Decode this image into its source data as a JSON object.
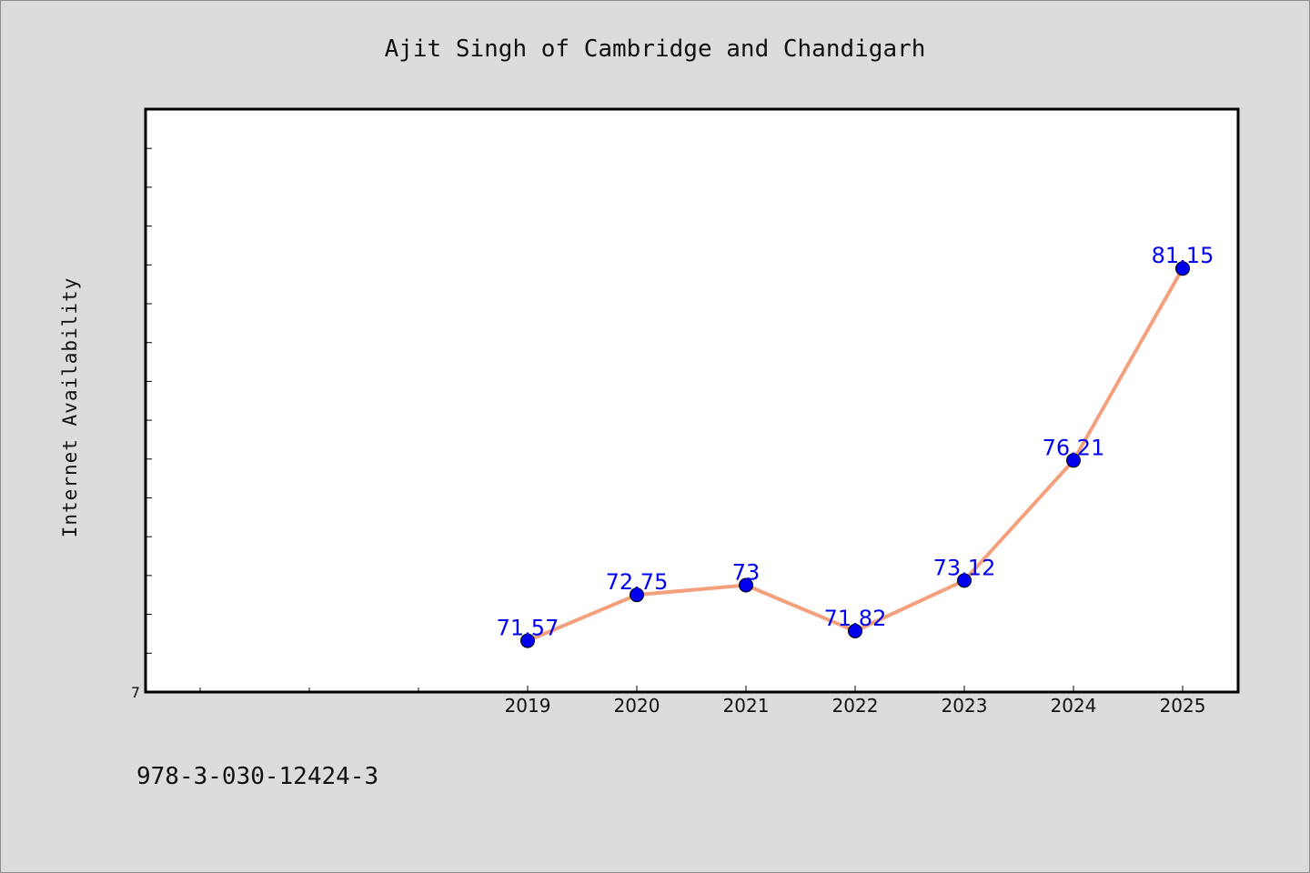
{
  "chart_data": {
    "type": "line",
    "title": "Ajit Singh of Cambridge and Chandigarh",
    "xlabel": "",
    "ylabel": "Internet Availability",
    "categories": [
      "2019",
      "2020",
      "2021",
      "2022",
      "2023",
      "2024",
      "2025"
    ],
    "series": [
      {
        "values": [
          71.57,
          72.75,
          73,
          71.82,
          73.12,
          76.21,
          81.15
        ],
        "labels": [
          "71.57",
          "72.75",
          "73",
          "71.82",
          "73.12",
          "76.21",
          "81.15"
        ],
        "line_color": "#f4a07c",
        "marker_color": "#0000ee"
      }
    ],
    "ylim": [
      70.25,
      85.25
    ],
    "yticks": [
      "7"
    ],
    "grid": false,
    "legend": "none"
  },
  "footer": {
    "isbn": "978-3-030-12424-3"
  }
}
